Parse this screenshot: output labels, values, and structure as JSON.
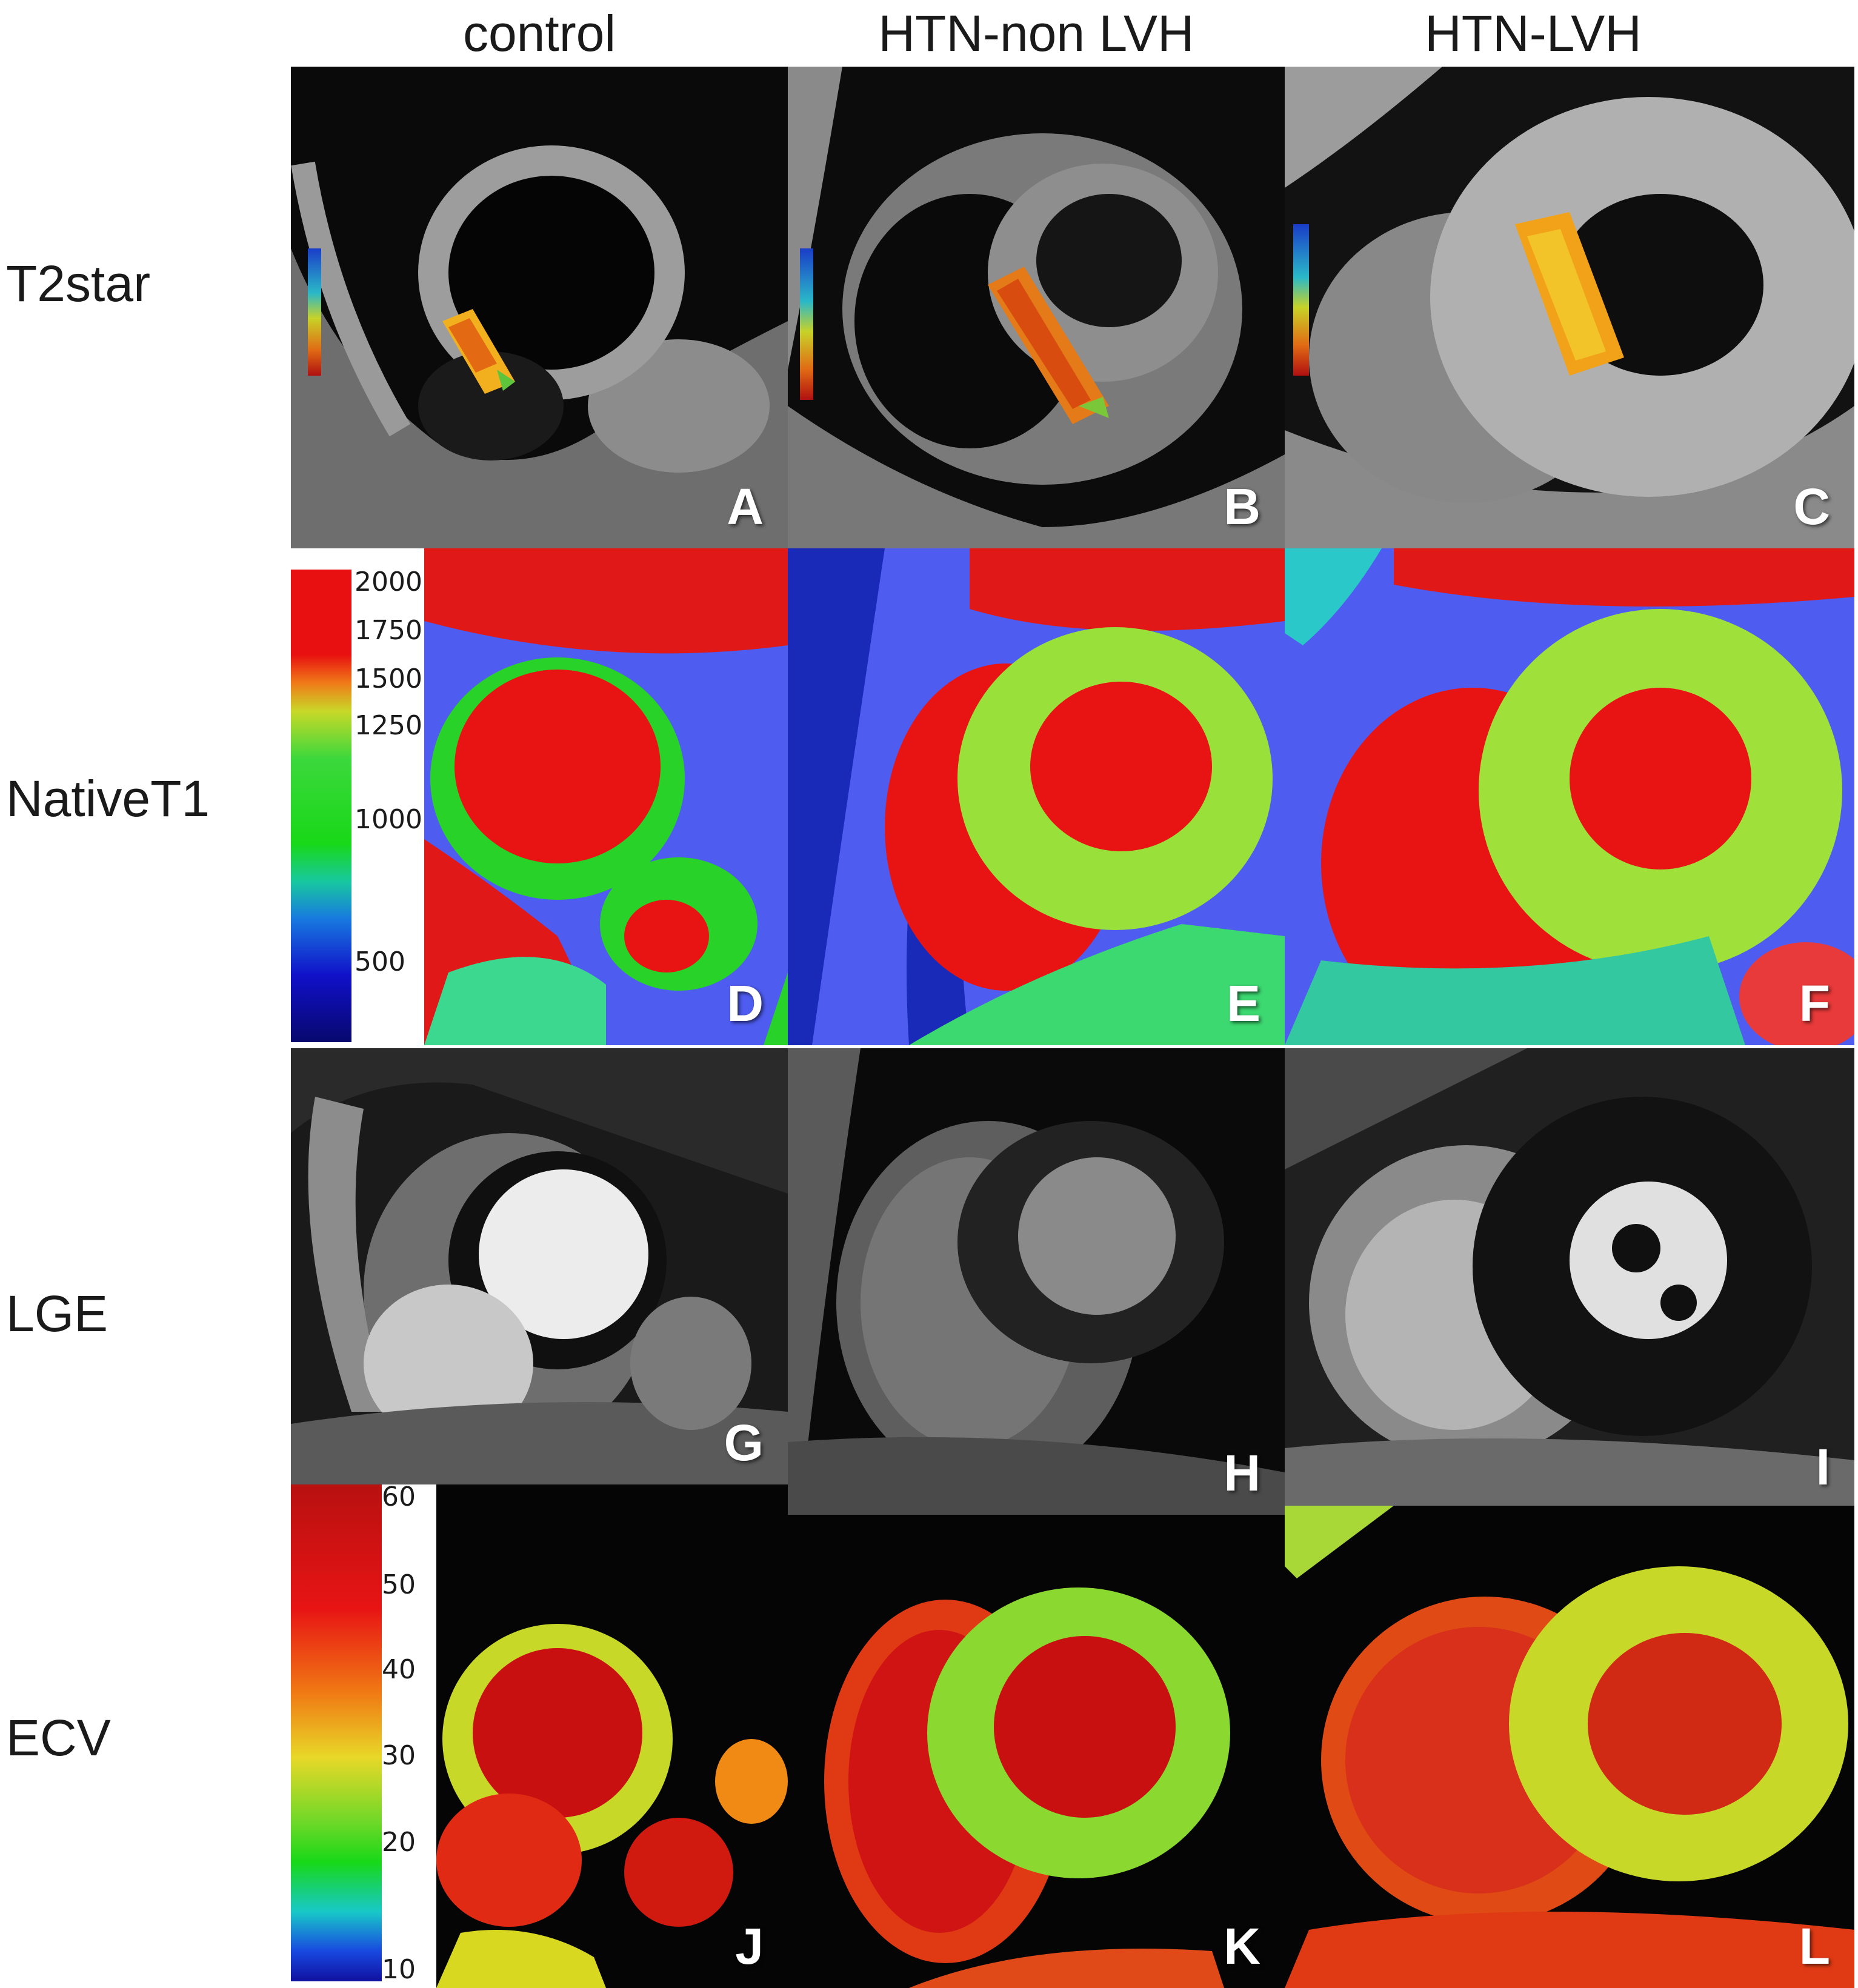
{
  "columns": [
    "control",
    "HTN-non LVH",
    "HTN-LVH"
  ],
  "rows": [
    "T2star",
    "NativeT1",
    "LGE",
    "ECV"
  ],
  "panel_letters": [
    "A",
    "B",
    "C",
    "D",
    "E",
    "F",
    "G",
    "H",
    "I",
    "J",
    "K",
    "L"
  ],
  "native_t1_scale": [
    "2000",
    "1750",
    "1500",
    "1250",
    "1000",
    "500"
  ],
  "ecv_scale": [
    "60",
    "50",
    "40",
    "30",
    "20",
    "10"
  ]
}
